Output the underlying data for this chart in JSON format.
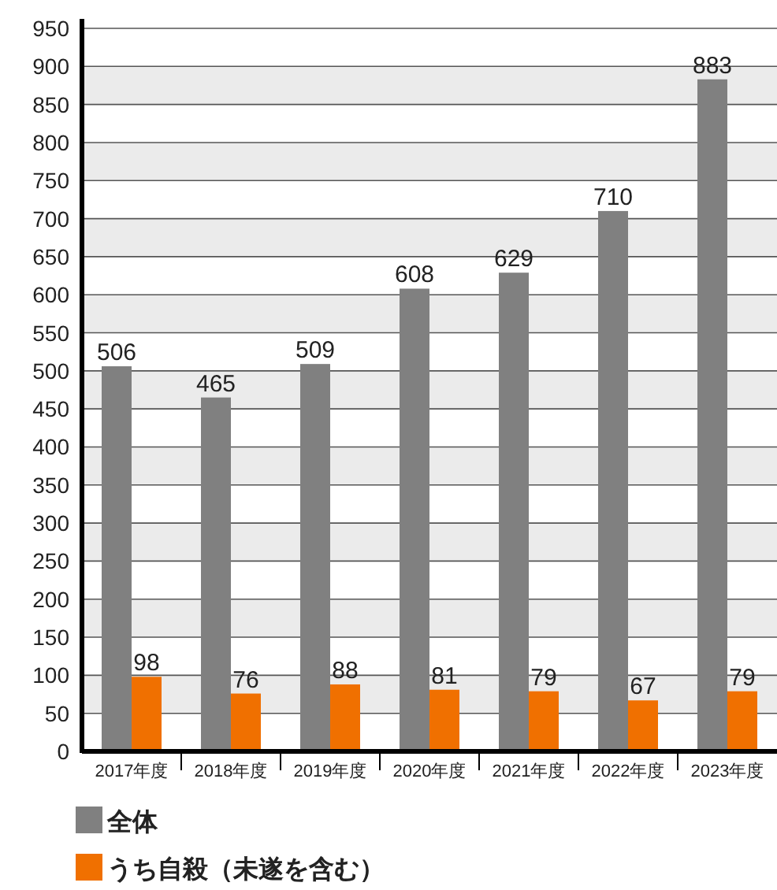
{
  "chart_data": {
    "type": "bar",
    "categories": [
      "2017年度",
      "2018年度",
      "2019年度",
      "2020年度",
      "2021年度",
      "2022年度",
      "2023年度"
    ],
    "series": [
      {
        "name": "全体",
        "color": "#808080",
        "values": [
          506,
          465,
          509,
          608,
          629,
          710,
          883
        ]
      },
      {
        "name": "うち自殺（未遂を含む）",
        "color": "#f07000",
        "values": [
          98,
          76,
          88,
          81,
          79,
          67,
          79
        ]
      }
    ],
    "ylim": [
      0,
      950
    ],
    "yticks": [
      0,
      50,
      100,
      150,
      200,
      250,
      300,
      350,
      400,
      450,
      500,
      550,
      600,
      650,
      700,
      750,
      800,
      850,
      900,
      950
    ],
    "grid": "y",
    "legend": "bottom left",
    "data_labels": true
  }
}
